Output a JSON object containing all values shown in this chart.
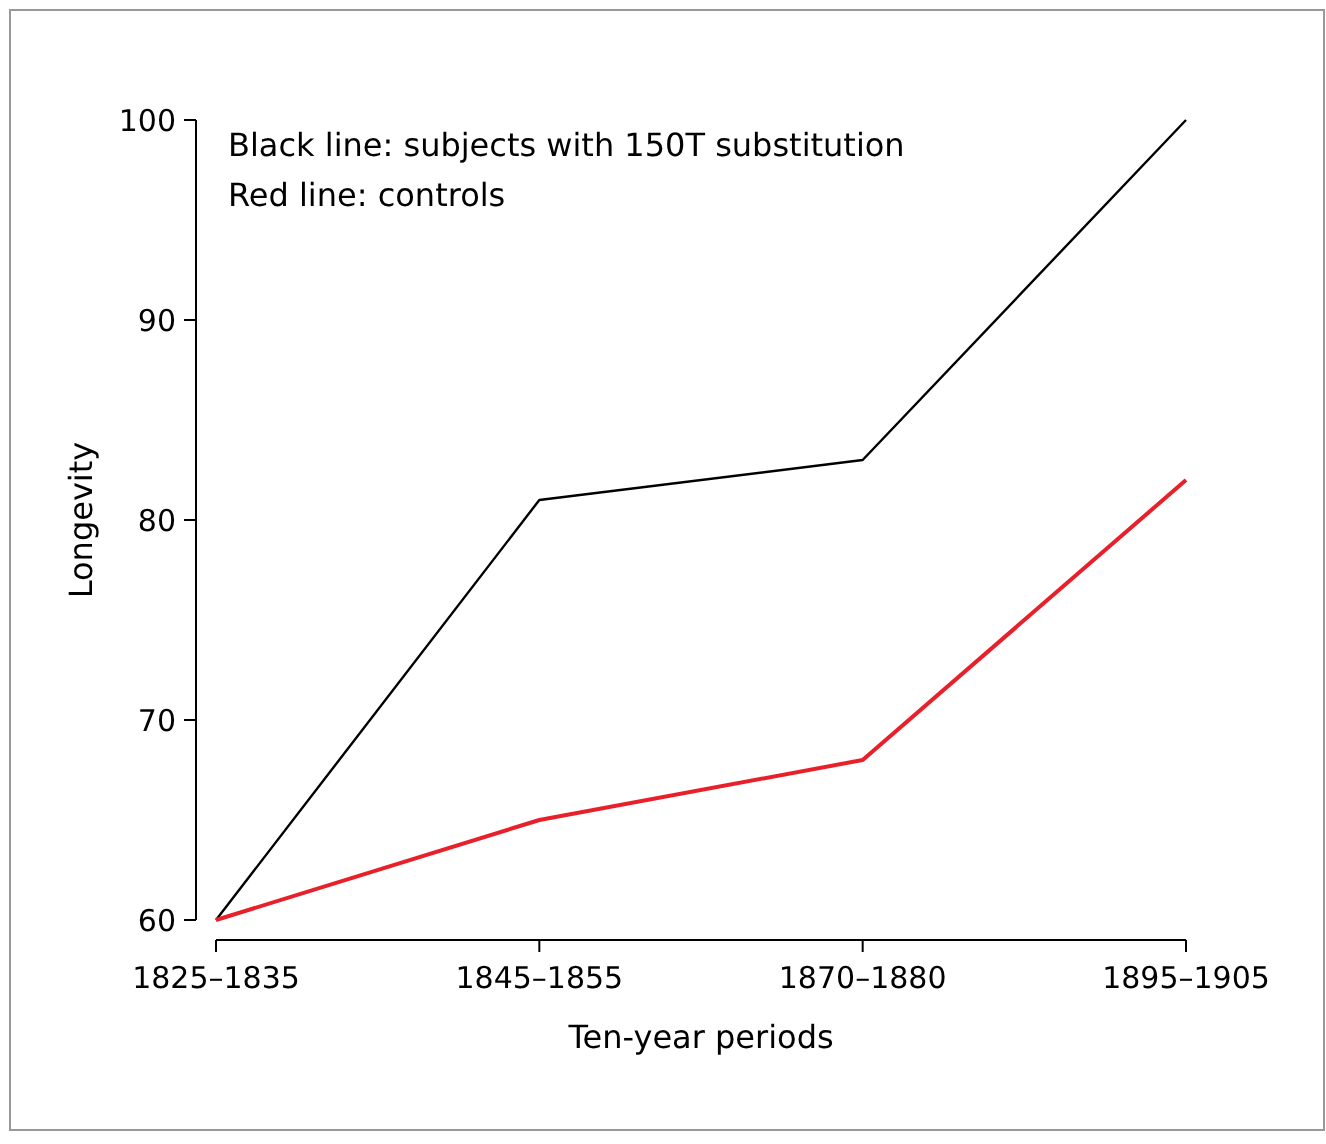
{
  "chart_data": {
    "type": "line",
    "xlabel": "Ten-year periods",
    "ylabel": "Longevity",
    "categories": [
      "1825–1835",
      "1845–1855",
      "1870–1880",
      "1895–1905"
    ],
    "series": [
      {
        "color": "#000000",
        "values": [
          60,
          81,
          83,
          100
        ]
      },
      {
        "color": "#e8202a",
        "values": [
          60,
          65,
          68,
          82
        ]
      }
    ],
    "ylim": [
      60,
      100
    ],
    "yticks": [
      60,
      70,
      80,
      90,
      100
    ],
    "grid": false,
    "marker": "none",
    "line_style": "solid",
    "annotations": [
      "Black line: subjects with 150T substitution",
      "Red line: controls"
    ]
  }
}
